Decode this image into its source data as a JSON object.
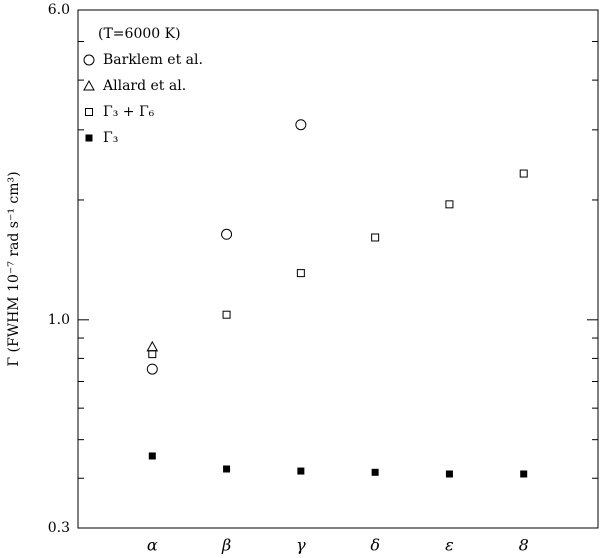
{
  "chart_data": {
    "type": "scatter",
    "annotation": "(T=6000 K)",
    "y_label": "Γ (FWHM 10⁻⁷ rad s⁻¹ cm³)",
    "categories": [
      "α",
      "β",
      "γ",
      "δ",
      "ε",
      "8"
    ],
    "log_y": true,
    "ylim": [
      0.3,
      6
    ],
    "yticks": [
      0.3,
      {
        "value": 1,
        "label": "1.0"
      },
      {
        "value": 6,
        "label": "6.0"
      }
    ],
    "minor_yticks": [
      0.4,
      0.5,
      0.6,
      0.7,
      0.8,
      0.9,
      2,
      3,
      4,
      5
    ],
    "legend": "upper left",
    "series": [
      {
        "name": "Barklem et al.",
        "marker": "circle",
        "color": "#000000",
        "values": [
          0.752,
          1.64,
          3.09,
          null,
          null,
          null
        ]
      },
      {
        "name": "Allard et al.",
        "marker": "triangle",
        "color": "#000000",
        "values": [
          0.855,
          null,
          null,
          null,
          null,
          null
        ]
      },
      {
        "name": "Γ₃ + Γ₆",
        "marker": "square",
        "color": "#000000",
        "values": [
          0.82,
          1.03,
          1.31,
          1.61,
          1.95,
          2.33
        ]
      },
      {
        "name": "Γ₃",
        "marker": "filled-square",
        "color": "#000000",
        "values": [
          0.455,
          0.422,
          0.417,
          0.414,
          0.41,
          0.41
        ]
      }
    ]
  }
}
